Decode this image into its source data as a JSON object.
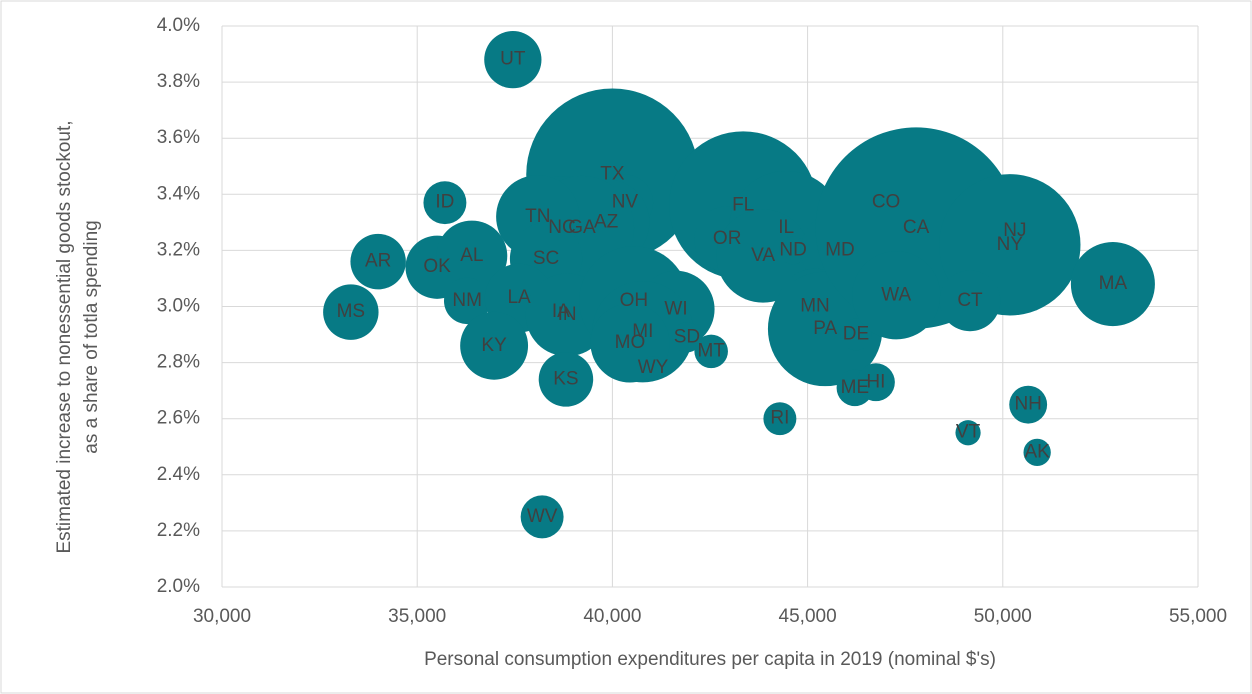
{
  "chart_data": {
    "type": "bubble",
    "x_label": "Personal consumption expenditures per capita in 2019 (nominal $'s)",
    "y_label": [
      "Estimated increase to nonessential goods stockout,",
      "as a share of totla spending"
    ],
    "color": "#077a85",
    "grid": true,
    "xlim": [
      30000,
      55000
    ],
    "xticks": [
      {
        "value": 30000,
        "label": "30,000"
      },
      {
        "value": 35000,
        "label": "35,000"
      },
      {
        "value": 40000,
        "label": "40,000"
      },
      {
        "value": 45000,
        "label": "45,000"
      },
      {
        "value": 50000,
        "label": "50,000"
      },
      {
        "value": 55000,
        "label": "55,000"
      }
    ],
    "ylim": [
      2.0,
      4.0
    ],
    "yticks": [
      {
        "value": 2.0,
        "label": "2.0%"
      },
      {
        "value": 2.2,
        "label": "2.2%"
      },
      {
        "value": 2.4,
        "label": "2.4%"
      },
      {
        "value": 2.6,
        "label": "2.6%"
      },
      {
        "value": 2.8,
        "label": "2.8%"
      },
      {
        "value": 3.0,
        "label": "3.0%"
      },
      {
        "value": 3.2,
        "label": "3.2%"
      },
      {
        "value": 3.4,
        "label": "3.4%"
      },
      {
        "value": 3.6,
        "label": "3.6%"
      },
      {
        "value": 3.8,
        "label": "3.8%"
      },
      {
        "value": 4.0,
        "label": "4.0%"
      }
    ],
    "labels": [
      "UT",
      "TX",
      "NV",
      "AZ",
      "NC",
      "GA",
      "TN",
      "SC",
      "ID",
      "AR",
      "OK",
      "AL",
      "NM",
      "MS",
      "LA",
      "IA",
      "IN",
      "KY",
      "KS",
      "WV",
      "OH",
      "WI",
      "MI",
      "MO",
      "SD",
      "WY",
      "MT",
      "FL",
      "OR",
      "IL",
      "VA",
      "ND",
      "MD",
      "MN",
      "PA",
      "DE",
      "CO",
      "CA",
      "NJ",
      "NY",
      "WA",
      "CT",
      "MA",
      "ME",
      "HI",
      "RI",
      "NH",
      "VT",
      "AK"
    ],
    "x": [
      37450,
      40000,
      40320,
      39840,
      38710,
      39220,
      38090,
      38300,
      35710,
      34000,
      35510,
      36400,
      36280,
      33300,
      37610,
      38680,
      38840,
      36970,
      38810,
      38200,
      40550,
      41630,
      40780,
      40450,
      41910,
      41040,
      42530,
      43350,
      42940,
      44450,
      43860,
      44630,
      45830,
      45190,
      45450,
      46240,
      47010,
      47780,
      50310,
      50180,
      47270,
      49160,
      52820,
      46210,
      46750,
      44290,
      50650,
      49110,
      50880
    ],
    "y": [
      3.88,
      3.47,
      3.37,
      3.3,
      3.28,
      3.28,
      3.32,
      3.17,
      3.37,
      3.16,
      3.14,
      3.18,
      3.02,
      2.98,
      3.03,
      2.98,
      2.97,
      2.86,
      2.74,
      2.25,
      3.02,
      2.99,
      2.91,
      2.87,
      2.89,
      2.78,
      2.84,
      3.36,
      3.24,
      3.28,
      3.18,
      3.2,
      3.2,
      3.0,
      2.92,
      2.9,
      3.37,
      3.28,
      3.27,
      3.22,
      3.04,
      3.02,
      3.08,
      2.71,
      2.73,
      2.6,
      2.65,
      2.55,
      2.48
    ],
    "sizes": [
      3.2,
      29,
      3.1,
      7.3,
      10.5,
      10.6,
      6.8,
      5.1,
      1.8,
      3.0,
      3.9,
      4.9,
      2.1,
      3.0,
      4.6,
      3.2,
      6.7,
      4.5,
      2.9,
      1.8,
      11.7,
      5.8,
      10,
      6.1,
      0.88,
      0.58,
      1.1,
      21.5,
      4.2,
      12.7,
      8.5,
      0.76,
      6,
      5.6,
      12.8,
      0.97,
      5.8,
      39.5,
      8.9,
      19.5,
      7.6,
      3.6,
      6.9,
      1.3,
      1.4,
      1.06,
      1.4,
      0.62,
      0.73
    ]
  }
}
